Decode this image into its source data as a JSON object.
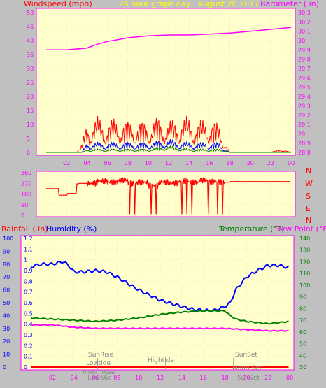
{
  "header": {
    "left_label": "Windspeed (mph)",
    "center_label": "24 hour graph day : August 20 2017",
    "right_label": "Barometer (.in)"
  },
  "middle": {
    "compass": [
      "N",
      "W",
      "S",
      "E",
      "N"
    ]
  },
  "bottom_header": {
    "rainfall_label": "Rainfall (.in)",
    "humidity_label": "Humidity (%)",
    "temperature_label": "Temperature (°F)",
    "dewpoint_label": "Dew Point (°F)"
  },
  "annotations": {
    "sunrise": "SunRise",
    "lowtide": "Lowtide",
    "moonrise": "Moon Rise",
    "lowtide2": "Low66e",
    "hightide": "Hightide",
    "sunset": "SunSet",
    "moonset": "Moon Set",
    "sunset2": "SunSet"
  },
  "colors": {
    "panel_bg": "#ffffcc",
    "grid": "#ffd0d0",
    "axis": "#ff00ff",
    "wind_red": "#ff0000",
    "wind_blue": "#0000ff",
    "wind_green": "#008000",
    "barometer": "#ff00ff",
    "humidity": "#0000ff",
    "temperature": "#008000",
    "dewpoint": "#ff00ff",
    "title_yellow": "#ffff00"
  },
  "chart_data": [
    {
      "type": "line",
      "name": "wind-barometer",
      "x_ticks": [
        "02",
        "04",
        "06",
        "08",
        "10",
        "12",
        "14",
        "16",
        "18",
        "20",
        "22",
        "00"
      ],
      "y_left_ticks": [
        0,
        5,
        10,
        15,
        20,
        25,
        30,
        35,
        40,
        45,
        50
      ],
      "ylim_left": [
        0,
        50
      ],
      "y_right_ticks": [
        "28.8",
        "28.9",
        "29",
        "29.1",
        "29.2",
        "29.3",
        "29.4",
        "29.5",
        "29.6",
        "29.7",
        "29.8",
        "29.9",
        "30",
        "30.1",
        "30.2",
        "30.3"
      ],
      "ylim_right": [
        28.8,
        30.3
      ],
      "series": [
        {
          "name": "Barometer",
          "x_hours": [
            0,
            2,
            4,
            5,
            6,
            7,
            8,
            10,
            12,
            14,
            16,
            18,
            20,
            22,
            24
          ],
          "values": [
            29.9,
            29.9,
            29.92,
            29.96,
            29.99,
            30.01,
            30.03,
            30.05,
            30.06,
            30.06,
            30.07,
            30.08,
            30.1,
            30.12,
            30.14
          ]
        },
        {
          "name": "Windspeed gust",
          "x_hours": [
            0,
            1,
            2,
            3,
            3.5,
            4,
            5,
            6,
            7,
            8,
            9,
            10,
            11,
            12,
            13,
            14,
            15,
            16,
            17,
            17.5,
            18,
            19,
            20,
            21,
            22,
            23,
            24
          ],
          "values": [
            0,
            0,
            0,
            0,
            2,
            8,
            9,
            8,
            9,
            8,
            8,
            8,
            9,
            8,
            9,
            9,
            8,
            9,
            7,
            3,
            0,
            0,
            0,
            0,
            0,
            1,
            0
          ]
        },
        {
          "name": "Windspeed avg",
          "x_hours": [
            0,
            3.5,
            4,
            6,
            8,
            10,
            12,
            14,
            16,
            17,
            17.5,
            18,
            24
          ],
          "values": [
            0,
            0,
            3,
            3,
            3,
            3,
            4,
            3,
            3,
            3,
            1,
            0,
            0
          ]
        },
        {
          "name": "Windspeed low",
          "x_hours": [
            0,
            3.5,
            4,
            6,
            8,
            10,
            12,
            14,
            16,
            17,
            18,
            24
          ],
          "values": [
            0,
            0,
            1,
            1,
            1,
            1,
            2,
            1,
            1,
            1,
            0,
            0
          ]
        }
      ]
    },
    {
      "type": "line",
      "name": "wind-direction",
      "x_ticks": [
        "02",
        "04",
        "06",
        "08",
        "10",
        "12",
        "14",
        "16",
        "18",
        "20",
        "22",
        "00"
      ],
      "y_ticks": [
        0,
        90,
        180,
        270,
        360
      ],
      "ylim": [
        0,
        360
      ],
      "series": [
        {
          "name": "Wind Direction",
          "x_hours": [
            0,
            1,
            1.2,
            2,
            2.1,
            3,
            3.2,
            4,
            5,
            6,
            7,
            8,
            9,
            10,
            11,
            12,
            13,
            14,
            15,
            16,
            17,
            18,
            19,
            20,
            21,
            22,
            23,
            24
          ],
          "values": [
            225,
            225,
            170,
            170,
            185,
            265,
            270,
            270,
            290,
            280,
            295,
            270,
            280,
            250,
            280,
            270,
            290,
            280,
            295,
            285,
            280,
            285,
            285,
            285,
            285,
            285,
            285,
            285
          ]
        }
      ]
    },
    {
      "type": "line",
      "name": "temp-humidity-rain",
      "x_ticks": [
        "02",
        "04",
        "06",
        "08",
        "10",
        "12",
        "14",
        "16",
        "18",
        "20",
        "22",
        "00"
      ],
      "y_rain_ticks": [
        "0",
        "0.1",
        "0.2",
        "0.3",
        "0.4",
        "0.5",
        "0.6",
        "0.7",
        "0.8",
        "0.9",
        "1",
        "1.1",
        "1.2"
      ],
      "ylim_rain": [
        0,
        1.2
      ],
      "y_humidity_ticks": [
        0,
        10,
        20,
        30,
        40,
        50,
        60,
        70,
        80,
        90,
        100
      ],
      "ylim_humidity": [
        0,
        100
      ],
      "y_temp_ticks": [
        30,
        40,
        50,
        60,
        70,
        80,
        90,
        100,
        110,
        120,
        130,
        140
      ],
      "ylim_temp": [
        30,
        140
      ],
      "series": [
        {
          "name": "Humidity",
          "x_hours": [
            0,
            1,
            2,
            3,
            3.5,
            4,
            5,
            6,
            7,
            8,
            10,
            12,
            14,
            15,
            16,
            17,
            18,
            18.5,
            19,
            20,
            21,
            22,
            23,
            24
          ],
          "values": [
            78,
            80,
            80,
            82,
            79,
            74,
            74,
            75,
            74,
            70,
            60,
            52,
            47,
            45,
            44,
            44,
            47,
            50,
            60,
            70,
            75,
            79,
            79,
            77
          ]
        },
        {
          "name": "Temperature",
          "x_hours": [
            0,
            2,
            4,
            6,
            8,
            10,
            12,
            14,
            16,
            18,
            18.5,
            19,
            20,
            22,
            23,
            24
          ],
          "values": [
            72,
            71,
            70,
            69,
            70,
            72,
            75,
            77,
            78,
            78,
            74,
            71,
            69,
            67,
            68,
            69
          ]
        },
        {
          "name": "Dew Point",
          "x_hours": [
            0,
            2,
            4,
            6,
            8,
            10,
            12,
            14,
            16,
            18,
            20,
            22,
            24
          ],
          "values": [
            66,
            66,
            64,
            63,
            63,
            63,
            63,
            63,
            63,
            63,
            62,
            61,
            61
          ]
        },
        {
          "name": "Rainfall",
          "x_hours": [
            0,
            24
          ],
          "values": [
            0,
            0
          ]
        }
      ]
    }
  ]
}
